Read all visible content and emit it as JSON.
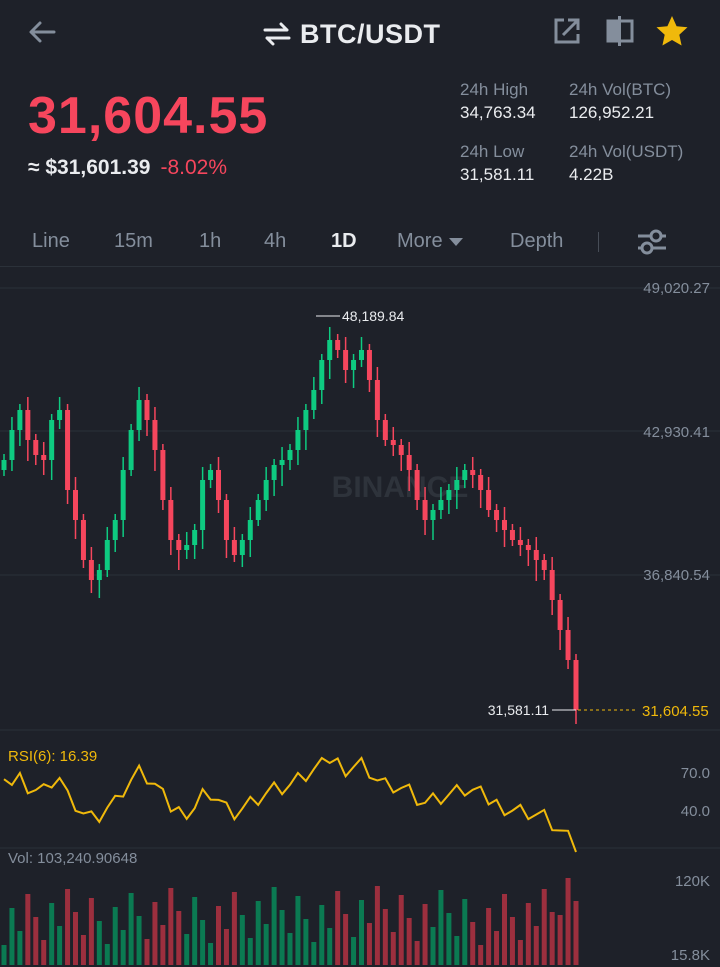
{
  "header": {
    "pair": "BTC/USDT",
    "icons": [
      "back-arrow-icon",
      "swap-arrows-icon",
      "share-icon",
      "layout-icon",
      "favorite-star-icon"
    ]
  },
  "price": {
    "last": "31,604.55",
    "usd": "≈ $31,601.39",
    "change": "-8.02%"
  },
  "stats": {
    "high_label": "24h High",
    "high_value": "34,763.34",
    "low_label": "24h Low",
    "low_value": "31,581.11",
    "vol_btc_label": "24h Vol(BTC)",
    "vol_btc_value": "126,952.21",
    "vol_usdt_label": "24h Vol(USDT)",
    "vol_usdt_value": "4.22B"
  },
  "tabs": {
    "line": "Line",
    "m15": "15m",
    "h1": "1h",
    "h4": "4h",
    "d1": "1D",
    "more": "More",
    "depth": "Depth",
    "active": "1D"
  },
  "colors": {
    "up": "#0ecb81",
    "down": "#f6465d",
    "accent": "#f0b90b",
    "bg": "#1e2129"
  },
  "chart": {
    "axis": [
      "49,020.27",
      "42,930.41",
      "36,840.54"
    ],
    "high_marker": "48,189.84",
    "low_marker": "31,581.11",
    "last_price_tag": "31,604.55",
    "watermark": "BINANCE"
  },
  "rsi": {
    "label": "RSI(6): 16.39",
    "ticks": [
      "70.0",
      "40.0"
    ]
  },
  "volume": {
    "label": "Vol: 103,240.90648",
    "ticks": [
      "120K",
      "15.8K"
    ]
  },
  "chart_data": {
    "type": "candlestick",
    "interval": "1D",
    "ylim": [
      31581.11,
      49020.27
    ],
    "y_ticks": [
      49020.27,
      42930.41,
      36840.54
    ],
    "high": 48189.84,
    "low": 31581.11,
    "last": 31604.55
  }
}
